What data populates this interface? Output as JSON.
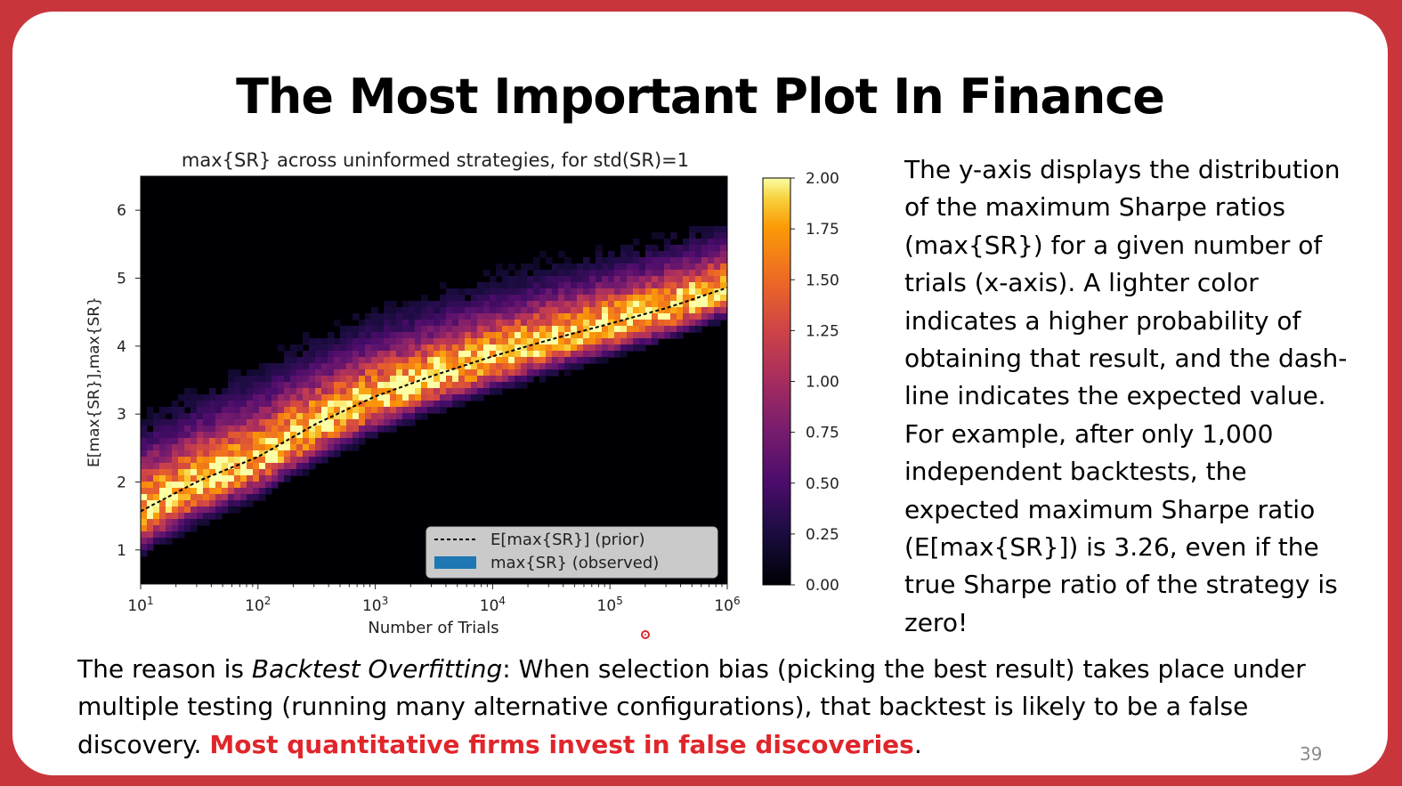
{
  "slide": {
    "title": "The Most Important Plot In Finance",
    "page_number": "39",
    "side_text": "The y-axis displays the distribution of the maximum Sharpe ratios (max{SR}) for a given number of trials (x-axis). A lighter color indicates a higher probability of obtaining that result, and the dash-line indicates the expected value. For example, after only 1,000 independent backtests, the expected maximum Sharpe ratio (E[max{SR}]) is 3.26, even if the true Sharpe ratio of the strategy is zero!",
    "bottom_text": {
      "part1": "The reason is ",
      "emphasis": "Backtest Overfitting",
      "part2": ": When selection bias (picking the best result) takes place under multiple testing (running many alternative configurations), that backtest is likely to be a false discovery. ",
      "highlight": "Most quantitative firms invest in false discoveries",
      "end": "."
    },
    "colors": {
      "frame": "#c8363c",
      "highlight": "#e0262b",
      "plot_background": "#000004"
    }
  },
  "chart_data": {
    "type": "heatmap",
    "title": "max{SR} across uninformed strategies, for std(SR)=1",
    "xlabel": "Number of Trials",
    "ylabel": "E[max{SR}],max{SR}",
    "x_scale": "log",
    "x_ticks": [
      10,
      100,
      1000,
      10000,
      100000,
      1000000
    ],
    "x_tick_labels": [
      [
        "10",
        "1"
      ],
      [
        "10",
        "2"
      ],
      [
        "10",
        "3"
      ],
      [
        "10",
        "4"
      ],
      [
        "10",
        "5"
      ],
      [
        "10",
        "6"
      ]
    ],
    "xlim": [
      10,
      1000000
    ],
    "y_ticks": [
      1,
      2,
      3,
      4,
      5,
      6
    ],
    "ylim": [
      0.5,
      6.5
    ],
    "expected_curve": {
      "name": "E[max{SR}] (prior)",
      "style": "dashed",
      "x": [
        10,
        31.6,
        100,
        316,
        1000,
        3162,
        10000,
        31623,
        100000,
        316228,
        1000000
      ],
      "y": [
        1.57,
        2.02,
        2.37,
        2.86,
        3.26,
        3.57,
        3.85,
        4.1,
        4.33,
        4.57,
        4.86
      ]
    },
    "observed": {
      "name": "max{SR} (observed)",
      "legend_color": "#1f77b4"
    },
    "colorbar": {
      "range": [
        0,
        2
      ],
      "ticks": [
        "2.00",
        "1.75",
        "1.50",
        "1.25",
        "1.00",
        "0.75",
        "0.50",
        "0.25",
        "0.00"
      ],
      "colormap": "inferno"
    },
    "legend_position": "lower-right"
  }
}
